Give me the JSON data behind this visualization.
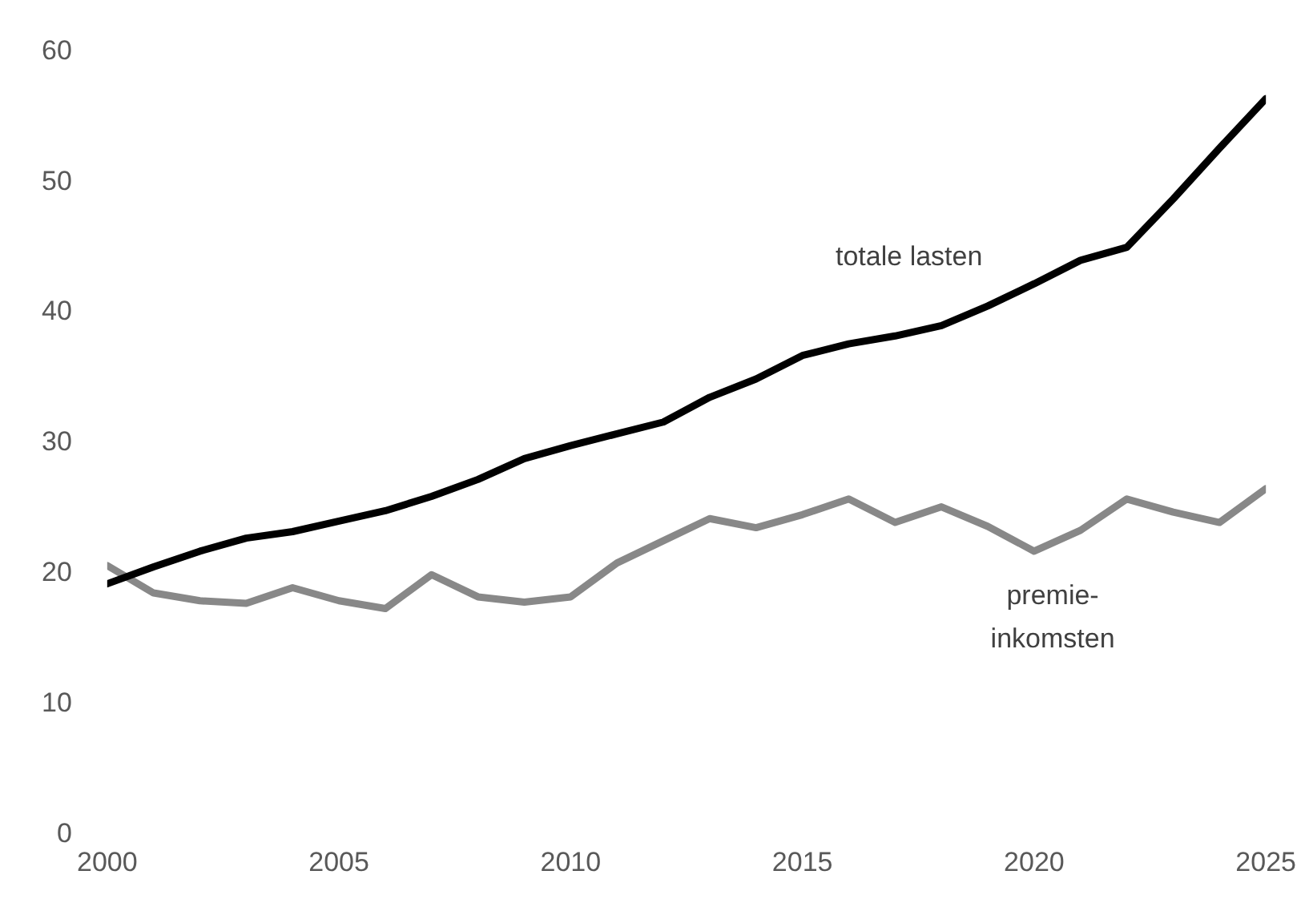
{
  "chart_data": {
    "type": "line",
    "x": [
      2000,
      2001,
      2002,
      2003,
      2004,
      2005,
      2006,
      2007,
      2008,
      2009,
      2010,
      2011,
      2012,
      2013,
      2014,
      2015,
      2016,
      2017,
      2018,
      2019,
      2020,
      2021,
      2022,
      2023,
      2024,
      2025
    ],
    "series": [
      {
        "name": "totale lasten",
        "color": "#000000",
        "values": [
          19.2,
          20.5,
          21.7,
          22.7,
          23.2,
          24.0,
          24.8,
          25.9,
          27.2,
          28.8,
          29.8,
          30.7,
          31.6,
          33.5,
          34.9,
          36.7,
          37.6,
          38.2,
          39.0,
          40.5,
          42.2,
          44.0,
          45.0,
          48.7,
          52.6,
          56.4
        ]
      },
      {
        "name": "premie-inkomsten",
        "color": "#888888",
        "values": [
          20.6,
          18.5,
          17.9,
          17.7,
          18.9,
          17.9,
          17.3,
          19.9,
          18.2,
          17.8,
          18.2,
          20.8,
          22.5,
          24.2,
          23.5,
          24.5,
          25.7,
          23.9,
          25.1,
          23.6,
          21.7,
          23.3,
          25.7,
          24.7,
          23.9,
          26.5
        ]
      }
    ],
    "xlim": [
      2000,
      2025
    ],
    "xticks": [
      2000,
      2005,
      2010,
      2015,
      2020,
      2025
    ],
    "ylim": [
      0,
      60
    ],
    "yticks": [
      0,
      10,
      20,
      30,
      40,
      50,
      60
    ],
    "grid": false,
    "legend": false,
    "marker": "none",
    "line_style": "solid"
  }
}
